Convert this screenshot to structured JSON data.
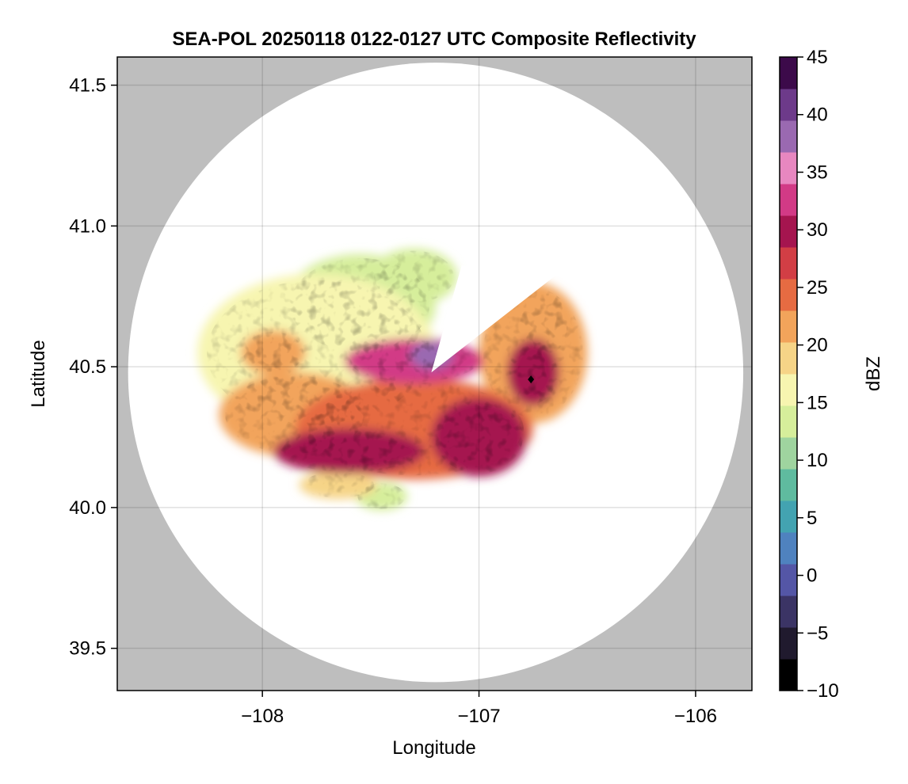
{
  "chart_data": {
    "type": "heatmap",
    "title": "SEA-POL 20250118 0122-0127 UTC Composite Reflectivity",
    "xlabel": "Longitude",
    "ylabel": "Latitude",
    "xlim": [
      -108.67,
      -105.74
    ],
    "ylim": [
      39.35,
      41.6
    ],
    "x_ticks": [
      -108,
      -107,
      -106
    ],
    "x_tick_labels": [
      "−108",
      "−107",
      "−106"
    ],
    "y_ticks": [
      39.5,
      40.0,
      40.5,
      41.0,
      41.5
    ],
    "y_tick_labels": [
      "39.5",
      "40.0",
      "40.5",
      "41.0",
      "41.5"
    ],
    "grid": true,
    "radar_center": {
      "lon": -107.2,
      "lat": 40.48
    },
    "radar_range_lon": 1.42,
    "radar_range_lat": 1.1,
    "outside_range_color": "#bebebe",
    "colorbar": {
      "label": "dBZ",
      "range": [
        -10,
        45
      ],
      "ticks": [
        -10,
        -5,
        0,
        5,
        10,
        15,
        20,
        25,
        30,
        35,
        40,
        45
      ],
      "tick_labels": [
        "−10",
        "−5",
        "0",
        "5",
        "10",
        "15",
        "20",
        "25",
        "30",
        "35",
        "40",
        "45"
      ],
      "colors": [
        "#000000",
        "#201a2e",
        "#3b3465",
        "#5456a6",
        "#4f82bf",
        "#43a3b1",
        "#5fbb9f",
        "#9fd49f",
        "#d6ee9b",
        "#f7f5b0",
        "#f6d487",
        "#f2a45b",
        "#e66b42",
        "#d23e45",
        "#a5154f",
        "#d23a86",
        "#e887c0",
        "#9a69b1",
        "#6d3a8a",
        "#3c0a4a"
      ]
    },
    "echo_regions": [
      {
        "lon": -107.75,
        "lat": 40.55,
        "rx": 0.55,
        "ry": 0.28,
        "dbz": 17
      },
      {
        "lon": -107.55,
        "lat": 40.72,
        "rx": 0.35,
        "ry": 0.18,
        "dbz": 14
      },
      {
        "lon": -107.3,
        "lat": 40.82,
        "rx": 0.2,
        "ry": 0.1,
        "dbz": 13
      },
      {
        "lon": -106.75,
        "lat": 40.55,
        "rx": 0.25,
        "ry": 0.25,
        "dbz": 22
      },
      {
        "lon": -106.7,
        "lat": 40.65,
        "rx": 0.12,
        "ry": 0.12,
        "dbz": 17
      },
      {
        "lon": -107.3,
        "lat": 40.28,
        "rx": 0.55,
        "ry": 0.18,
        "dbz": 25
      },
      {
        "lon": -107.85,
        "lat": 40.33,
        "rx": 0.35,
        "ry": 0.15,
        "dbz": 22
      },
      {
        "lon": -107.3,
        "lat": 40.52,
        "rx": 0.32,
        "ry": 0.08,
        "dbz": 33
      },
      {
        "lon": -107.22,
        "lat": 40.54,
        "rx": 0.1,
        "ry": 0.05,
        "dbz": 37
      },
      {
        "lon": -107.6,
        "lat": 40.2,
        "rx": 0.35,
        "ry": 0.08,
        "dbz": 30
      },
      {
        "lon": -107.0,
        "lat": 40.25,
        "rx": 0.22,
        "ry": 0.14,
        "dbz": 29
      },
      {
        "lon": -106.75,
        "lat": 40.48,
        "rx": 0.12,
        "ry": 0.12,
        "dbz": 31
      },
      {
        "lon": -107.95,
        "lat": 40.55,
        "rx": 0.15,
        "ry": 0.08,
        "dbz": 22
      },
      {
        "lon": -107.65,
        "lat": 40.08,
        "rx": 0.18,
        "ry": 0.05,
        "dbz": 20
      },
      {
        "lon": -107.45,
        "lat": 40.04,
        "rx": 0.12,
        "ry": 0.05,
        "dbz": 14
      }
    ],
    "marker": {
      "lon": -106.76,
      "lat": 40.455
    }
  }
}
